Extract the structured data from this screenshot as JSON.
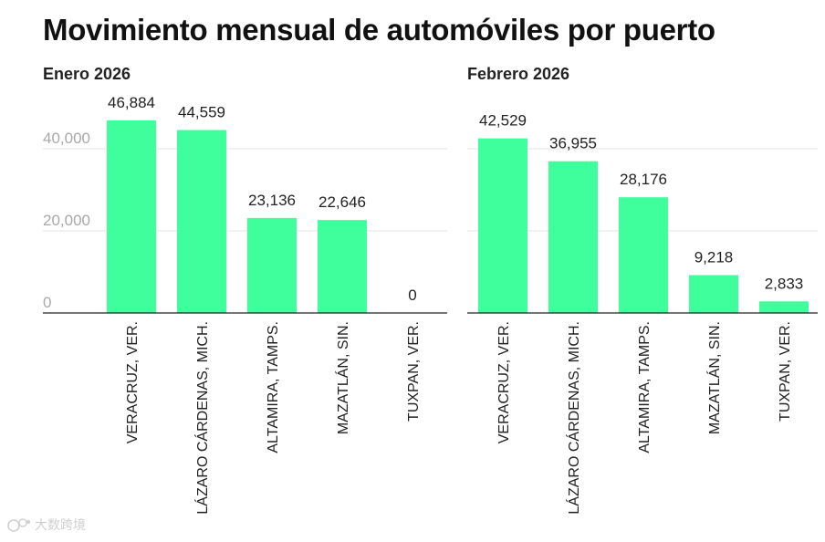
{
  "title": "Movimiento mensual de automóviles por puerto",
  "watermark": "大数跨境",
  "colors": {
    "bar": "#3fff9c",
    "grid": "#e3e3e3",
    "axis": "#222222"
  },
  "chart_data": [
    {
      "type": "bar",
      "title": "Enero 2026",
      "categories": [
        "VERACRUZ, VER.",
        "LÁZARO CÁRDENAS, MICH.",
        "ALTAMIRA, TAMPS.",
        "MAZATLÁN, SIN.",
        "TUXPAN, VER."
      ],
      "values": [
        46884,
        44559,
        23136,
        22646,
        0
      ],
      "value_labels": [
        "46,884",
        "44,559",
        "23,136",
        "22,646",
        "0"
      ],
      "yticks": [
        0,
        20000,
        40000
      ],
      "ytick_labels": [
        "0",
        "20,000",
        "40,000"
      ],
      "ylim": [
        0,
        50000
      ],
      "xlabel": "",
      "ylabel": ""
    },
    {
      "type": "bar",
      "title": "Febrero 2026",
      "categories": [
        "VERACRUZ, VER.",
        "LÁZARO CÁRDENAS, MICH.",
        "ALTAMIRA, TAMPS.",
        "MAZATLÁN, SIN.",
        "TUXPAN, VER."
      ],
      "values": [
        42529,
        36955,
        28176,
        9218,
        2833
      ],
      "value_labels": [
        "42,529",
        "36,955",
        "28,176",
        "9,218",
        "2,833"
      ],
      "yticks": [
        0,
        20000,
        40000
      ],
      "ytick_labels": [],
      "ylim": [
        0,
        50000
      ],
      "xlabel": "",
      "ylabel": ""
    }
  ]
}
